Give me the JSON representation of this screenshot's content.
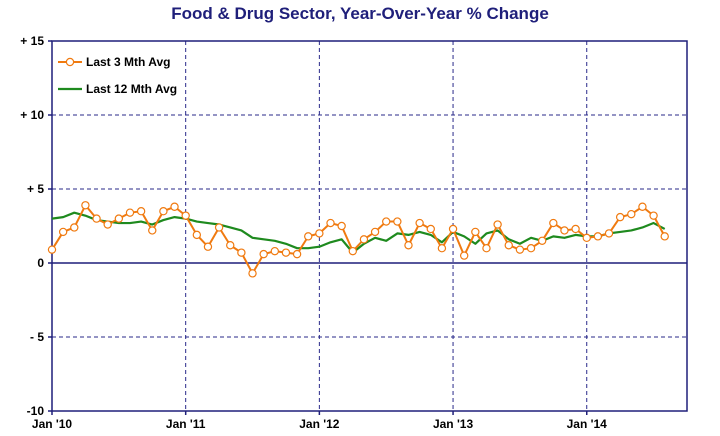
{
  "chart_data": {
    "type": "line",
    "title": "Food & Drug Sector, Year-Over-Year % Change",
    "ylim": [
      -10,
      15
    ],
    "yticks": [
      15,
      10,
      5,
      0,
      -5,
      -10
    ],
    "ytick_labels": [
      "+ 15",
      "+ 10",
      "+ 5",
      "0",
      "- 5",
      "-10"
    ],
    "xlim": [
      0,
      57
    ],
    "xticks": [
      0,
      12,
      24,
      36,
      48
    ],
    "xtick_labels": [
      "Jan '10",
      "Jan '11",
      "Jan '12",
      "Jan '13",
      "Jan '14"
    ],
    "grid": true,
    "legend_position": "top-left",
    "colors": {
      "primary": "#F07A10",
      "secondary": "#1E8A1E",
      "axis": "#1f1f7a",
      "title": "#1f1f7a"
    },
    "series": [
      {
        "name": "Last 3 Mth Avg",
        "color": "#F07A10",
        "marker": "circle",
        "values": [
          0.9,
          2.1,
          2.4,
          3.9,
          3.0,
          2.6,
          3.0,
          3.4,
          3.5,
          2.2,
          3.5,
          3.8,
          3.2,
          1.9,
          1.1,
          2.4,
          1.2,
          0.7,
          -0.7,
          0.6,
          0.8,
          0.7,
          0.6,
          1.8,
          2.0,
          2.7,
          2.5,
          0.8,
          1.6,
          2.1,
          2.8,
          2.8,
          1.2,
          2.7,
          2.3,
          1.0,
          2.3,
          0.5,
          2.1,
          1.0,
          2.6,
          1.2,
          0.9,
          1.0,
          1.5,
          2.7,
          2.2,
          2.3,
          1.7,
          1.8,
          2.0,
          3.1,
          3.3,
          3.8,
          3.2,
          1.8
        ]
      },
      {
        "name": "Last 12 Mth Avg",
        "color": "#1E8A1E",
        "marker": "none",
        "values": [
          3.0,
          3.1,
          3.4,
          3.2,
          2.9,
          2.8,
          2.7,
          2.7,
          2.8,
          2.6,
          2.9,
          3.1,
          3.0,
          2.8,
          2.7,
          2.6,
          2.4,
          2.2,
          1.7,
          1.6,
          1.5,
          1.3,
          1.0,
          1.0,
          1.1,
          1.4,
          1.6,
          0.7,
          1.3,
          1.7,
          1.5,
          2.0,
          1.9,
          2.1,
          1.9,
          1.4,
          2.1,
          1.8,
          1.3,
          2.0,
          2.2,
          1.6,
          1.3,
          1.7,
          1.5,
          1.8,
          1.7,
          1.9,
          1.8,
          1.8,
          2.0,
          2.1,
          2.2,
          2.4,
          2.7,
          2.3
        ]
      }
    ]
  }
}
